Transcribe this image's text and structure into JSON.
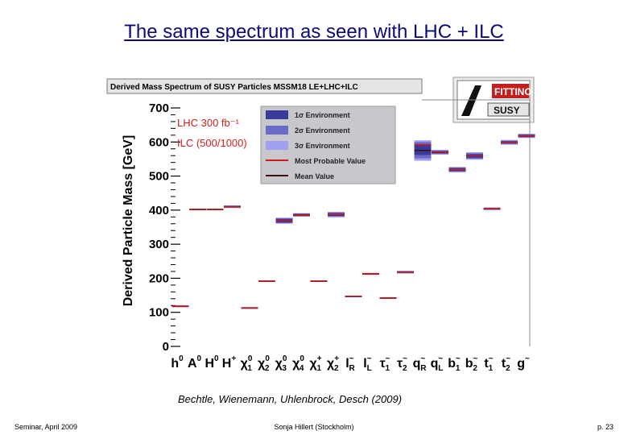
{
  "slide": {
    "title": "The same spectrum as seen with LHC + ILC",
    "citation": "Bechtle, Wienemann, Uhlenbrock, Desch (2009)",
    "footer_left": "Seminar, April 2009",
    "footer_center": "Sonja Hillert (Stockholm)",
    "footer_right": "p. 23"
  },
  "colors": {
    "title": "#0a0a7a",
    "band1": "#3a3a9a",
    "band2": "#6a6ac8",
    "band3": "#a0a0f0",
    "most_probable": "#cc1a1a",
    "mean": "#3a1010",
    "legend_bg": "#c8c8cc"
  },
  "logo": {
    "text_top": "FITTINO",
    "text_bottom": "SUSY"
  },
  "chart_data": {
    "type": "scatter",
    "title": "Derived Mass Spectrum of SUSY Particles MSSM18 LE+LHC+ILC",
    "ylabel": "Derived Particle Mass [GeV]",
    "ylim": [
      0,
      700
    ],
    "yticks": [
      0,
      100,
      200,
      300,
      400,
      500,
      600,
      700
    ],
    "grid": false,
    "annotations": {
      "lumi_lhc": "LHC 300 fb⁻¹",
      "lumi_ilc": "ILC (500/1000)"
    },
    "legend": {
      "position": "top-right",
      "entries": [
        "1σ Environment",
        "2σ Environment",
        "3σ Environment",
        "Most Probable Value",
        "Mean Value"
      ]
    },
    "categories": [
      {
        "sym": "h",
        "sup": "0",
        "sub": ""
      },
      {
        "sym": "A",
        "sup": "0",
        "sub": ""
      },
      {
        "sym": "H",
        "sup": "0",
        "sub": ""
      },
      {
        "sym": "H",
        "sup": "+",
        "sub": ""
      },
      {
        "sym": "χ",
        "sup": "0",
        "sub": "1"
      },
      {
        "sym": "χ",
        "sup": "0",
        "sub": "2"
      },
      {
        "sym": "χ",
        "sup": "0",
        "sub": "3"
      },
      {
        "sym": "χ",
        "sup": "0",
        "sub": "4"
      },
      {
        "sym": "χ",
        "sup": "+",
        "sub": "1"
      },
      {
        "sym": "χ",
        "sup": "+",
        "sub": "2"
      },
      {
        "sym": "l",
        "sup": "~",
        "sub": "R"
      },
      {
        "sym": "l",
        "sup": "~",
        "sub": "L"
      },
      {
        "sym": "τ",
        "sup": "~",
        "sub": "1"
      },
      {
        "sym": "τ",
        "sup": "~",
        "sub": "2"
      },
      {
        "sym": "q",
        "sup": "~",
        "sub": "R"
      },
      {
        "sym": "q",
        "sup": "~",
        "sub": "L"
      },
      {
        "sym": "b",
        "sup": "~",
        "sub": "1"
      },
      {
        "sym": "b",
        "sup": "~",
        "sub": "2"
      },
      {
        "sym": "t",
        "sup": "~",
        "sub": "1"
      },
      {
        "sym": "t",
        "sup": "~",
        "sub": "2"
      },
      {
        "sym": "g",
        "sup": "~",
        "sub": ""
      }
    ],
    "series": [
      {
        "name": "Most Probable Value",
        "values": [
          118,
          402,
          402,
          410,
          113,
          192,
          369,
          386,
          192,
          387,
          147,
          213,
          142,
          218,
          592,
          570,
          519,
          559,
          404,
          599,
          618
        ]
      },
      {
        "name": "Mean Value",
        "values": [
          118,
          402,
          402,
          410,
          113,
          192,
          369,
          386,
          192,
          387,
          147,
          213,
          142,
          218,
          575,
          570,
          519,
          559,
          404,
          599,
          618
        ]
      },
      {
        "name": "1σ Environment",
        "values": [
          [
            117,
            119
          ],
          [
            400,
            404
          ],
          [
            400,
            404
          ],
          [
            408,
            412
          ],
          [
            112,
            114
          ],
          [
            191,
            193
          ],
          [
            364,
            374
          ],
          [
            383,
            389
          ],
          [
            191,
            193
          ],
          [
            383,
            391
          ],
          [
            146,
            148
          ],
          [
            212,
            214
          ],
          [
            141,
            143
          ],
          [
            216,
            220
          ],
          [
            562,
            592
          ],
          [
            567,
            573
          ],
          [
            515,
            523
          ],
          [
            554,
            564
          ],
          [
            402,
            406
          ],
          [
            596,
            602
          ],
          [
            615,
            621
          ]
        ]
      },
      {
        "name": "2σ Environment",
        "values": [
          [
            117,
            119
          ],
          [
            400,
            404
          ],
          [
            400,
            404
          ],
          [
            407,
            413
          ],
          [
            112,
            114
          ],
          [
            191,
            193
          ],
          [
            362,
            376
          ],
          [
            382,
            390
          ],
          [
            191,
            193
          ],
          [
            381,
            393
          ],
          [
            146,
            148
          ],
          [
            211,
            215
          ],
          [
            141,
            143
          ],
          [
            215,
            221
          ],
          [
            552,
            600
          ],
          [
            565,
            575
          ],
          [
            513,
            525
          ],
          [
            551,
            567
          ],
          [
            401,
            407
          ],
          [
            594,
            604
          ],
          [
            613,
            623
          ]
        ]
      },
      {
        "name": "3σ Environment",
        "values": [
          [
            117,
            119
          ],
          [
            400,
            404
          ],
          [
            400,
            404
          ],
          [
            406,
            414
          ],
          [
            112,
            114
          ],
          [
            191,
            193
          ],
          [
            360,
            378
          ],
          [
            381,
            391
          ],
          [
            191,
            193
          ],
          [
            379,
            395
          ],
          [
            146,
            148
          ],
          [
            210,
            216
          ],
          [
            141,
            143
          ],
          [
            214,
            222
          ],
          [
            545,
            605
          ],
          [
            563,
            577
          ],
          [
            511,
            527
          ],
          [
            548,
            570
          ],
          [
            400,
            408
          ],
          [
            592,
            606
          ],
          [
            612,
            624
          ]
        ]
      }
    ]
  }
}
